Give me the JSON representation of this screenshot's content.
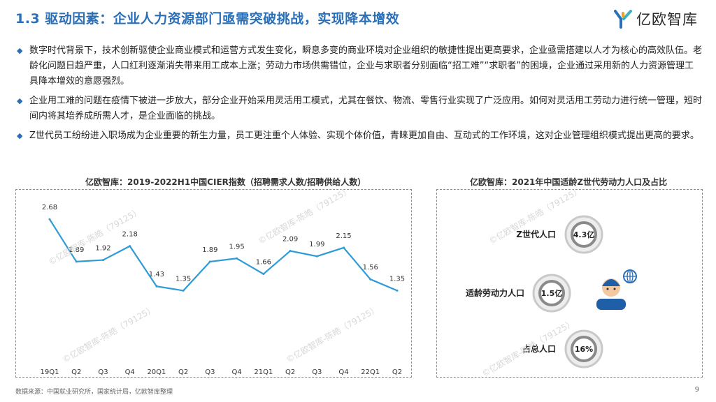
{
  "header": {
    "title": "1.3 驱动因素：企业人力资源部门亟需突破挑战，实现降本增效",
    "logo_text": "亿欧智库"
  },
  "bullets": [
    "数字时代背景下，技术创新驱使企业商业模式和运营方式发生变化，瞬息多变的商业环境对企业组织的敏捷性提出更高要求，企业亟需搭建以人才为核心的高效队伍。老龄化问题日趋严重，人口红利逐渐消失带来用工成本上涨；劳动力市场供需错位，企业与求职者分别面临“招工难”“求职者”的困境，企业通过采用新的人力资源管理工具降本增效的意愿强烈。",
    "企业用工难的问题在疫情下被进一步放大，部分企业开始采用灵活用工模式，尤其在餐饮、物流、零售行业实现了广泛应用。如何对灵活用工劳动力进行统一管理，短时间内将其培养成所需人才，是企业面临的挑战。",
    "Z世代员工纷纷进入职场成为企业重要的新生力量，员工更注重个人体验、实现个体价值，青睐更加自由、互动式的工作环境，这对企业管理组织模式提出更高的要求。"
  ],
  "chart_data": [
    {
      "type": "line",
      "title": "亿欧智库：2019-2022H1中国CIER指数（招聘需求人数/招聘供给人数）",
      "categories": [
        "19Q1",
        "Q2",
        "Q3",
        "Q4",
        "20Q1",
        "Q2",
        "Q3",
        "Q4",
        "21Q1",
        "Q2",
        "Q3",
        "Q4",
        "22Q1",
        "Q2"
      ],
      "values": [
        2.68,
        1.89,
        1.92,
        2.18,
        1.43,
        1.35,
        1.89,
        1.95,
        1.66,
        2.09,
        1.99,
        2.15,
        1.56,
        1.35
      ],
      "value_labels": [
        "2.68",
        "1.89",
        "1.92",
        "2.18",
        "1.43",
        "1.35",
        "1.89",
        "1.95",
        "1.66",
        "2.09",
        "1.99",
        "2.15",
        "1.56",
        "1.35"
      ],
      "ylim": [
        0,
        3.1
      ],
      "line_color": "#2e9bd6",
      "grid": false
    },
    {
      "type": "table",
      "title": "亿欧智库：2021年中国适龄Z世代劳动力人口及占比",
      "rows": [
        {
          "label": "Z世代人口",
          "value": "4.3亿"
        },
        {
          "label": "适龄劳动力人口",
          "value": "1.5亿"
        },
        {
          "label": "占总人口",
          "value": "16%"
        }
      ]
    }
  ],
  "footer": {
    "source": "数据来源：中国就业研究所，国家统计局，亿欧智库整理",
    "page": "9"
  },
  "watermark": "©亿欧智库-陈皓（79125）",
  "colors": {
    "accent": "#2a6fb8",
    "line": "#2e9bd6",
    "circle_ring": "#8a8a8a"
  }
}
